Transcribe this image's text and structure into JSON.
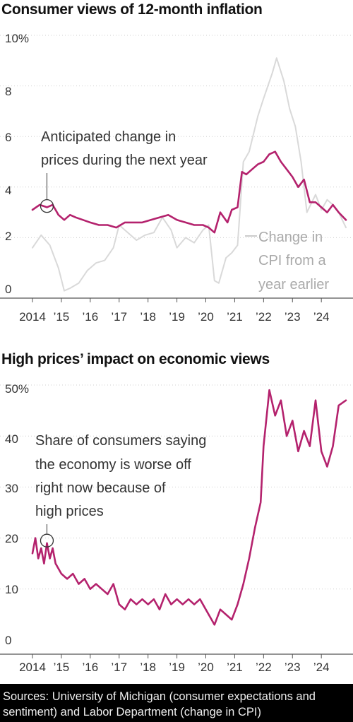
{
  "chart_data": [
    {
      "type": "line",
      "title": "Consumer views of 12-month inflation",
      "y_ticks": [
        "10%",
        "8",
        "6",
        "4",
        "2",
        "0"
      ],
      "ylim": [
        0,
        10
      ],
      "x_ticks": [
        "2014",
        "’15",
        "’16",
        "’17",
        "’18",
        "’19",
        "’20",
        "’21",
        "’22",
        "’23",
        "’24"
      ],
      "xlim": [
        2014.0,
        2024.9
      ],
      "grid": true,
      "annotation": [
        "Anticipated change in",
        "prices during the next year"
      ],
      "series_label": [
        "Change in",
        "CPI from a",
        "year earlier"
      ],
      "series": [
        {
          "name": "Anticipated change in prices during the next year",
          "color": "#b4226d",
          "x": [
            2014.0,
            2014.25,
            2014.5,
            2014.7,
            2014.9,
            2015.1,
            2015.3,
            2015.5,
            2015.75,
            2016.0,
            2016.3,
            2016.6,
            2016.9,
            2017.2,
            2017.5,
            2017.8,
            2018.1,
            2018.4,
            2018.7,
            2019.0,
            2019.3,
            2019.6,
            2019.9,
            2020.1,
            2020.3,
            2020.5,
            2020.75,
            2020.9,
            2021.1,
            2021.25,
            2021.4,
            2021.6,
            2021.8,
            2022.0,
            2022.2,
            2022.4,
            2022.6,
            2022.8,
            2023.0,
            2023.2,
            2023.4,
            2023.6,
            2023.8,
            2024.0,
            2024.2,
            2024.4,
            2024.6,
            2024.85
          ],
          "values": [
            3.1,
            3.3,
            3.2,
            3.3,
            2.9,
            2.7,
            2.9,
            2.8,
            2.7,
            2.6,
            2.5,
            2.5,
            2.4,
            2.6,
            2.6,
            2.6,
            2.7,
            2.8,
            2.9,
            2.7,
            2.6,
            2.5,
            2.5,
            2.4,
            2.2,
            3.0,
            2.6,
            3.1,
            3.2,
            4.6,
            4.5,
            4.7,
            4.9,
            5.0,
            5.3,
            5.4,
            5.0,
            4.7,
            4.4,
            4.0,
            4.3,
            3.4,
            3.4,
            3.2,
            3.0,
            3.3,
            3.0,
            2.7
          ]
        },
        {
          "name": "Change in CPI from a year earlier",
          "color": "#d9d9d9",
          "x": [
            2014.0,
            2014.3,
            2014.6,
            2014.9,
            2015.1,
            2015.3,
            2015.6,
            2015.9,
            2016.2,
            2016.5,
            2016.8,
            2017.0,
            2017.3,
            2017.6,
            2017.9,
            2018.2,
            2018.5,
            2018.8,
            2019.0,
            2019.3,
            2019.6,
            2019.9,
            2020.1,
            2020.3,
            2020.45,
            2020.7,
            2020.9,
            2021.1,
            2021.3,
            2021.5,
            2021.8,
            2022.0,
            2022.3,
            2022.45,
            2022.7,
            2022.9,
            2023.1,
            2023.3,
            2023.5,
            2023.8,
            2024.0,
            2024.2,
            2024.4,
            2024.6,
            2024.85
          ],
          "values": [
            1.6,
            2.1,
            1.7,
            0.8,
            -0.1,
            0.0,
            0.2,
            0.7,
            1.0,
            1.1,
            1.6,
            2.5,
            2.2,
            1.9,
            2.1,
            2.2,
            2.8,
            2.3,
            1.6,
            2.0,
            1.8,
            2.3,
            2.5,
            0.3,
            0.2,
            1.2,
            1.4,
            1.7,
            5.0,
            5.4,
            6.8,
            7.5,
            8.5,
            9.1,
            8.2,
            7.1,
            6.4,
            5.0,
            3.0,
            3.7,
            3.1,
            3.5,
            3.3,
            3.0,
            2.4
          ]
        }
      ]
    },
    {
      "type": "line",
      "title": "High prices’ impact on economic views",
      "y_ticks": [
        "50%",
        "40",
        "30",
        "20",
        "10",
        "0"
      ],
      "ylim": [
        0,
        50
      ],
      "x_ticks": [
        "2014",
        "’15",
        "’16",
        "’17",
        "’18",
        "’19",
        "’20",
        "’21",
        "’22",
        "’23",
        "’24"
      ],
      "xlim": [
        2014.0,
        2024.9
      ],
      "grid": true,
      "annotation": [
        "Share of consumers saying",
        "the economy is worse off",
        "right now because of",
        "high prices"
      ],
      "series": [
        {
          "name": "Share of consumers saying the economy is worse off right now because of high prices",
          "color": "#b4226d",
          "x": [
            2014.0,
            2014.1,
            2014.2,
            2014.3,
            2014.4,
            2014.5,
            2014.6,
            2014.7,
            2014.8,
            2015.0,
            2015.2,
            2015.4,
            2015.6,
            2015.8,
            2016.0,
            2016.2,
            2016.4,
            2016.6,
            2016.8,
            2017.0,
            2017.2,
            2017.4,
            2017.6,
            2017.8,
            2018.0,
            2018.2,
            2018.4,
            2018.6,
            2018.8,
            2019.0,
            2019.2,
            2019.4,
            2019.6,
            2019.8,
            2020.0,
            2020.2,
            2020.3,
            2020.5,
            2020.7,
            2020.9,
            2021.1,
            2021.3,
            2021.5,
            2021.7,
            2021.9,
            2022.0,
            2022.2,
            2022.4,
            2022.6,
            2022.8,
            2023.0,
            2023.2,
            2023.4,
            2023.6,
            2023.8,
            2024.0,
            2024.2,
            2024.4,
            2024.6,
            2024.85
          ],
          "values": [
            17,
            20,
            16,
            18,
            15,
            19,
            16,
            18,
            15,
            13,
            12,
            13,
            11,
            12,
            10,
            11,
            10,
            9,
            11,
            7,
            6,
            8,
            7,
            8,
            7,
            8,
            6,
            9,
            7,
            8,
            7,
            8,
            7,
            8,
            6,
            4,
            3,
            6,
            5,
            4,
            7,
            11,
            16,
            22,
            27,
            38,
            49,
            44,
            47,
            40,
            43,
            37,
            41,
            38,
            47,
            37,
            34,
            38,
            46,
            47
          ]
        }
      ]
    }
  ],
  "footer": {
    "line1": "Sources: University of Michigan (consumer expectations and",
    "line2": "sentiment) and Labor Department (change in CPI)"
  }
}
